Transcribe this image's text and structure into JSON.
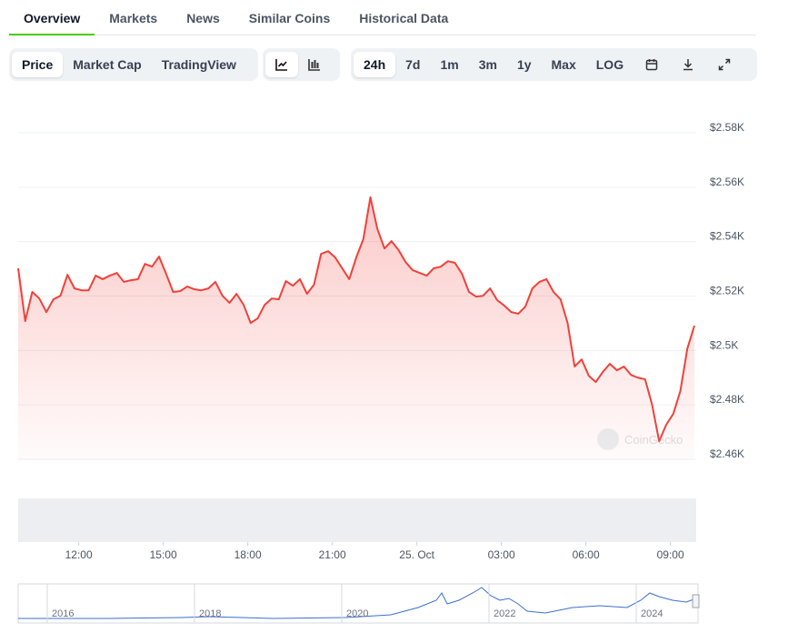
{
  "tabs": [
    "Overview",
    "Markets",
    "News",
    "Similar Coins",
    "Historical Data"
  ],
  "modes": [
    "Price",
    "Market Cap",
    "TradingView"
  ],
  "ranges": [
    "24h",
    "7d",
    "1m",
    "3m",
    "1y",
    "Max",
    "LOG"
  ],
  "watermark": "CoinGecko",
  "navigator": {
    "labels": [
      "2016",
      "2018",
      "2020",
      "2022",
      "2024"
    ]
  },
  "chart_data": {
    "type": "line",
    "color": "#f0413a",
    "grid": true,
    "xlim": [
      9.85,
      33.85
    ],
    "ylim": [
      2460,
      2580
    ],
    "xticks": [
      {
        "value": 12,
        "label": "12:00"
      },
      {
        "value": 15,
        "label": "15:00"
      },
      {
        "value": 18,
        "label": "18:00"
      },
      {
        "value": 21,
        "label": "21:00"
      },
      {
        "value": 24,
        "label": "25. Oct"
      },
      {
        "value": 27,
        "label": "03:00"
      },
      {
        "value": 30,
        "label": "06:00"
      },
      {
        "value": 33,
        "label": "09:00"
      }
    ],
    "yticks": [
      {
        "value": 2460,
        "label": "$2.46K"
      },
      {
        "value": 2480,
        "label": "$2.48K"
      },
      {
        "value": 2500,
        "label": "$2.5K"
      },
      {
        "value": 2520,
        "label": "$2.52K"
      },
      {
        "value": 2540,
        "label": "$2.54K"
      },
      {
        "value": 2560,
        "label": "$2.56K"
      },
      {
        "value": 2580,
        "label": "$2.58K"
      }
    ],
    "x": [
      9.85,
      10.1,
      10.35,
      10.6,
      10.85,
      11.1,
      11.35,
      11.6,
      11.85,
      12.1,
      12.35,
      12.6,
      12.85,
      13.1,
      13.35,
      13.6,
      13.85,
      14.1,
      14.35,
      14.6,
      14.85,
      15.1,
      15.35,
      15.6,
      15.85,
      16.1,
      16.35,
      16.6,
      16.85,
      17.1,
      17.35,
      17.6,
      17.85,
      18.1,
      18.35,
      18.6,
      18.85,
      19.1,
      19.35,
      19.6,
      19.85,
      20.1,
      20.35,
      20.6,
      20.85,
      21.1,
      21.35,
      21.6,
      21.85,
      22.1,
      22.35,
      22.6,
      22.85,
      23.1,
      23.35,
      23.6,
      23.85,
      24.1,
      24.35,
      24.6,
      24.85,
      25.1,
      25.35,
      25.6,
      25.85,
      26.1,
      26.35,
      26.6,
      26.85,
      27.1,
      27.35,
      27.6,
      27.85,
      28.1,
      28.35,
      28.6,
      28.85,
      29.1,
      29.35,
      29.6,
      29.85,
      30.1,
      30.35,
      30.6,
      30.85,
      31.1,
      31.35,
      31.6,
      31.85,
      32.1,
      32.35,
      32.6,
      32.85,
      33.1,
      33.35,
      33.6,
      33.85
    ],
    "values": [
      2530.2,
      2510.8,
      2521.5,
      2519.1,
      2514.1,
      2518.8,
      2520.1,
      2527.8,
      2522.8,
      2522.1,
      2522.1,
      2527.5,
      2526.2,
      2527.5,
      2528.5,
      2525.2,
      2525.8,
      2526.2,
      2531.8,
      2530.8,
      2534.5,
      2528.2,
      2521.5,
      2521.8,
      2523.5,
      2522.5,
      2522.1,
      2522.8,
      2525.2,
      2520.1,
      2517.5,
      2520.8,
      2516.8,
      2510.1,
      2511.8,
      2516.8,
      2519.1,
      2518.8,
      2525.5,
      2523.8,
      2526.2,
      2520.8,
      2524.2,
      2535.5,
      2536.5,
      2534.2,
      2530.2,
      2526.2,
      2534.2,
      2540.9,
      2556.3,
      2544.6,
      2537.5,
      2540.2,
      2536.9,
      2532.5,
      2529.5,
      2528.5,
      2527.5,
      2530.2,
      2530.8,
      2532.8,
      2532.2,
      2528.2,
      2521.5,
      2519.8,
      2520.1,
      2522.8,
      2518.5,
      2516.5,
      2514.1,
      2513.5,
      2516.1,
      2522.8,
      2525.2,
      2526.2,
      2521.5,
      2518.8,
      2510.1,
      2494.1,
      2496.7,
      2490.7,
      2488.4,
      2492.1,
      2495.1,
      2492.7,
      2494.1,
      2491.0,
      2490.0,
      2489.4,
      2480.0,
      2466.6,
      2472.7,
      2476.7,
      2485.0,
      2500.7,
      2509.1
    ]
  }
}
